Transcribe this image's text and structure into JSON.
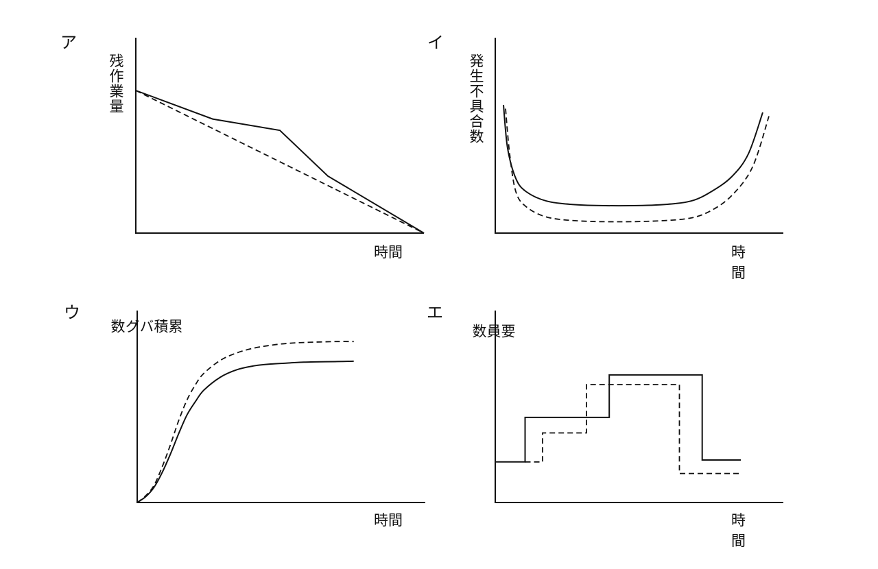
{
  "chart_data": [
    {
      "type": "line",
      "panel_label": "ア",
      "ylabel": "残作業量",
      "xlabel": "時間",
      "xlim": [
        0,
        12
      ],
      "ylim": [
        0,
        10
      ],
      "series": [
        {
          "style": "solid",
          "x": [
            0,
            3.2,
            6,
            8,
            12.0
          ],
          "y": [
            10,
            8,
            7.2,
            4,
            0
          ]
        },
        {
          "style": "dashed",
          "x": [
            0,
            12.0
          ],
          "y": [
            10,
            0
          ]
        }
      ]
    },
    {
      "type": "line",
      "panel_label": "イ",
      "ylabel": "発生不具合数",
      "xlabel": "時間",
      "xlim": [
        0,
        14
      ],
      "ylim": [
        0,
        10
      ],
      "series": [
        {
          "style": "solid",
          "x": [
            0.4,
            0.6,
            1.0,
            1.5,
            2.5,
            4,
            6,
            8,
            9.5,
            10.5,
            11.5,
            12.3,
            13.0
          ],
          "y": [
            6.8,
            4.5,
            2.9,
            2.2,
            1.7,
            1.5,
            1.45,
            1.5,
            1.7,
            2.2,
            3.0,
            4.2,
            6.4
          ]
        },
        {
          "style": "dashed",
          "x": [
            0.5,
            0.7,
            1.0,
            1.5,
            2.5,
            4,
            6,
            8,
            9.5,
            10.5,
            11.5,
            12.5,
            13.3
          ],
          "y": [
            6.6,
            4.2,
            2.2,
            1.4,
            0.85,
            0.65,
            0.6,
            0.65,
            0.8,
            1.2,
            2.0,
            3.5,
            6.2
          ]
        }
      ]
    },
    {
      "type": "line",
      "panel_label": "ウ",
      "ylabel": "累積バグ数",
      "xlabel": "時間",
      "xlim": [
        0,
        14
      ],
      "ylim": [
        0,
        10
      ],
      "series": [
        {
          "style": "solid",
          "x": [
            0,
            0.5,
            1,
            1.5,
            2,
            2.5,
            3,
            3.5,
            4,
            5,
            6,
            7,
            8,
            9,
            10,
            11,
            12,
            13
          ],
          "y": [
            0,
            0.3,
            0.8,
            1.6,
            2.6,
            3.7,
            4.7,
            5.4,
            6.0,
            6.7,
            7.1,
            7.3,
            7.4,
            7.45,
            7.5,
            7.52,
            7.53,
            7.55
          ]
        },
        {
          "style": "dashed",
          "x": [
            0,
            0.5,
            1,
            1.5,
            2,
            2.5,
            3,
            3.5,
            4,
            5,
            6,
            7,
            8,
            9,
            10,
            11,
            12,
            13
          ],
          "y": [
            0,
            0.35,
            0.9,
            1.9,
            3.1,
            4.4,
            5.5,
            6.3,
            6.9,
            7.6,
            8.0,
            8.25,
            8.4,
            8.5,
            8.55,
            8.58,
            8.6,
            8.6
          ]
        }
      ]
    },
    {
      "type": "line",
      "panel_label": "エ",
      "ylabel": "要員数",
      "xlabel": "時間",
      "xlim": [
        0,
        14
      ],
      "ylim": [
        0,
        10
      ],
      "series": [
        {
          "style": "solid",
          "step": true,
          "x": [
            0,
            1.7,
            1.7,
            6.5,
            6.5,
            11.8,
            11.8,
            14.0
          ],
          "y": [
            2.1,
            2.1,
            4.4,
            4.4,
            6.6,
            6.6,
            2.2,
            2.2
          ]
        },
        {
          "style": "dashed",
          "step": true,
          "x": [
            1.7,
            2.7,
            2.7,
            5.2,
            5.2,
            10.5,
            10.5,
            14.0
          ],
          "y": [
            2.1,
            2.1,
            3.6,
            3.6,
            6.1,
            6.1,
            1.5,
            1.5
          ]
        }
      ]
    }
  ]
}
